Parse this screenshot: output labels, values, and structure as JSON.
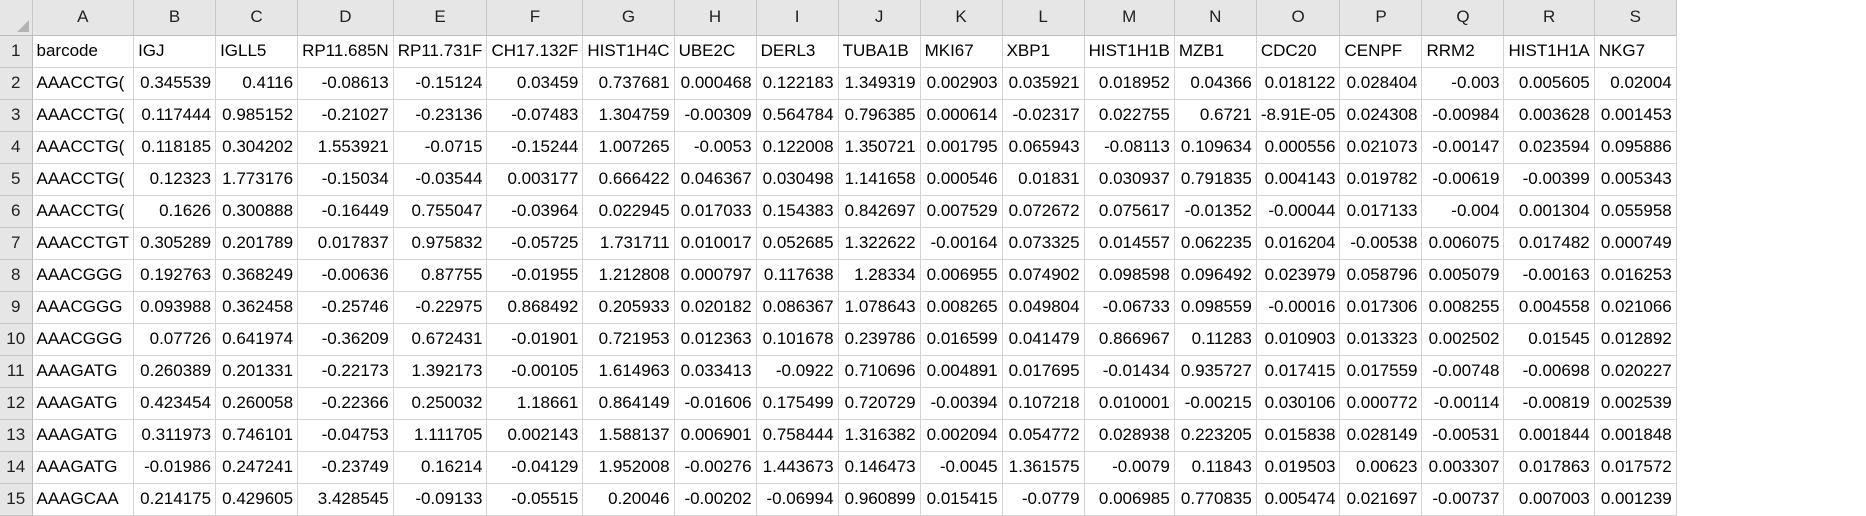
{
  "columns": [
    "A",
    "B",
    "C",
    "D",
    "E",
    "F",
    "G",
    "H",
    "I",
    "J",
    "K",
    "L",
    "M",
    "N",
    "O",
    "P",
    "Q",
    "R",
    "S"
  ],
  "rows": [
    {
      "num": "1",
      "cells": [
        "barcode",
        "IGJ",
        "IGLL5",
        "RP11.685N",
        "RP11.731F",
        "CH17.132F",
        "HIST1H4C",
        "UBE2C",
        "DERL3",
        "TUBA1B",
        "MKI67",
        "XBP1",
        "HIST1H1B",
        "MZB1",
        "CDC20",
        "CENPF",
        "RRM2",
        "HIST1H1A",
        "NKG7"
      ]
    },
    {
      "num": "2",
      "cells": [
        "AAACCTG(",
        "0.345539",
        "0.4116",
        "-0.08613",
        "-0.15124",
        "0.03459",
        "0.737681",
        "0.000468",
        "0.122183",
        "1.349319",
        "0.002903",
        "0.035921",
        "0.018952",
        "0.04366",
        "0.018122",
        "0.028404",
        "-0.003",
        "0.005605",
        "0.02004"
      ]
    },
    {
      "num": "3",
      "cells": [
        "AAACCTG(",
        "0.117444",
        "0.985152",
        "-0.21027",
        "-0.23136",
        "-0.07483",
        "1.304759",
        "-0.00309",
        "0.564784",
        "0.796385",
        "0.000614",
        "-0.02317",
        "0.022755",
        "0.6721",
        "-8.91E-05",
        "0.024308",
        "-0.00984",
        "0.003628",
        "0.001453"
      ]
    },
    {
      "num": "4",
      "cells": [
        "AAACCTG(",
        "0.118185",
        "0.304202",
        "1.553921",
        "-0.0715",
        "-0.15244",
        "1.007265",
        "-0.0053",
        "0.122008",
        "1.350721",
        "0.001795",
        "0.065943",
        "-0.08113",
        "0.109634",
        "0.000556",
        "0.021073",
        "-0.00147",
        "0.023594",
        "0.095886"
      ]
    },
    {
      "num": "5",
      "cells": [
        "AAACCTG(",
        "0.12323",
        "1.773176",
        "-0.15034",
        "-0.03544",
        "0.003177",
        "0.666422",
        "0.046367",
        "0.030498",
        "1.141658",
        "0.000546",
        "0.01831",
        "0.030937",
        "0.791835",
        "0.004143",
        "0.019782",
        "-0.00619",
        "-0.00399",
        "0.005343"
      ]
    },
    {
      "num": "6",
      "cells": [
        "AAACCTG(",
        "0.1626",
        "0.300888",
        "-0.16449",
        "0.755047",
        "-0.03964",
        "0.022945",
        "0.017033",
        "0.154383",
        "0.842697",
        "0.007529",
        "0.072672",
        "0.075617",
        "-0.01352",
        "-0.00044",
        "0.017133",
        "-0.004",
        "0.001304",
        "0.055958"
      ]
    },
    {
      "num": "7",
      "cells": [
        "AAACCTGT",
        "0.305289",
        "0.201789",
        "0.017837",
        "0.975832",
        "-0.05725",
        "1.731711",
        "0.010017",
        "0.052685",
        "1.322622",
        "-0.00164",
        "0.073325",
        "0.014557",
        "0.062235",
        "0.016204",
        "-0.00538",
        "0.006075",
        "0.017482",
        "0.000749"
      ]
    },
    {
      "num": "8",
      "cells": [
        "AAACGGG",
        "0.192763",
        "0.368249",
        "-0.00636",
        "0.87755",
        "-0.01955",
        "1.212808",
        "0.000797",
        "0.117638",
        "1.28334",
        "0.006955",
        "0.074902",
        "0.098598",
        "0.096492",
        "0.023979",
        "0.058796",
        "0.005079",
        "-0.00163",
        "0.016253"
      ]
    },
    {
      "num": "9",
      "cells": [
        "AAACGGG",
        "0.093988",
        "0.362458",
        "-0.25746",
        "-0.22975",
        "0.868492",
        "0.205933",
        "0.020182",
        "0.086367",
        "1.078643",
        "0.008265",
        "0.049804",
        "-0.06733",
        "0.098559",
        "-0.00016",
        "0.017306",
        "0.008255",
        "0.004558",
        "0.021066"
      ]
    },
    {
      "num": "10",
      "cells": [
        "AAACGGG",
        "0.07726",
        "0.641974",
        "-0.36209",
        "0.672431",
        "-0.01901",
        "0.721953",
        "0.012363",
        "0.101678",
        "0.239786",
        "0.016599",
        "0.041479",
        "0.866967",
        "0.11283",
        "0.010903",
        "0.013323",
        "0.002502",
        "0.01545",
        "0.012892"
      ]
    },
    {
      "num": "11",
      "cells": [
        "AAAGATG",
        "0.260389",
        "0.201331",
        "-0.22173",
        "1.392173",
        "-0.00105",
        "1.614963",
        "0.033413",
        "-0.0922",
        "0.710696",
        "0.004891",
        "0.017695",
        "-0.01434",
        "0.935727",
        "0.017415",
        "0.017559",
        "-0.00748",
        "-0.00698",
        "0.020227"
      ]
    },
    {
      "num": "12",
      "cells": [
        "AAAGATG",
        "0.423454",
        "0.260058",
        "-0.22366",
        "0.250032",
        "1.18661",
        "0.864149",
        "-0.01606",
        "0.175499",
        "0.720729",
        "-0.00394",
        "0.107218",
        "0.010001",
        "-0.00215",
        "0.030106",
        "0.000772",
        "-0.00114",
        "-0.00819",
        "0.002539"
      ]
    },
    {
      "num": "13",
      "cells": [
        "AAAGATG",
        "0.311973",
        "0.746101",
        "-0.04753",
        "1.111705",
        "0.002143",
        "1.588137",
        "0.006901",
        "0.758444",
        "1.316382",
        "0.002094",
        "0.054772",
        "0.028938",
        "0.223205",
        "0.015838",
        "0.028149",
        "-0.00531",
        "0.001844",
        "0.001848"
      ]
    },
    {
      "num": "14",
      "cells": [
        "AAAGATG",
        "-0.01986",
        "0.247241",
        "-0.23749",
        "0.16214",
        "-0.04129",
        "1.952008",
        "-0.00276",
        "1.443673",
        "0.146473",
        "-0.0045",
        "1.361575",
        "-0.0079",
        "0.11843",
        "0.019503",
        "0.00623",
        "0.003307",
        "0.017863",
        "0.017572"
      ]
    },
    {
      "num": "15",
      "cells": [
        "AAAGCAA",
        "0.214175",
        "0.429605",
        "3.428545",
        "-0.09133",
        "-0.05515",
        "0.20046",
        "-0.00202",
        "-0.06994",
        "0.960899",
        "0.015415",
        "-0.0779",
        "0.006985",
        "0.770835",
        "0.005474",
        "0.021697",
        "-0.00737",
        "0.007003",
        "0.001239"
      ]
    }
  ]
}
